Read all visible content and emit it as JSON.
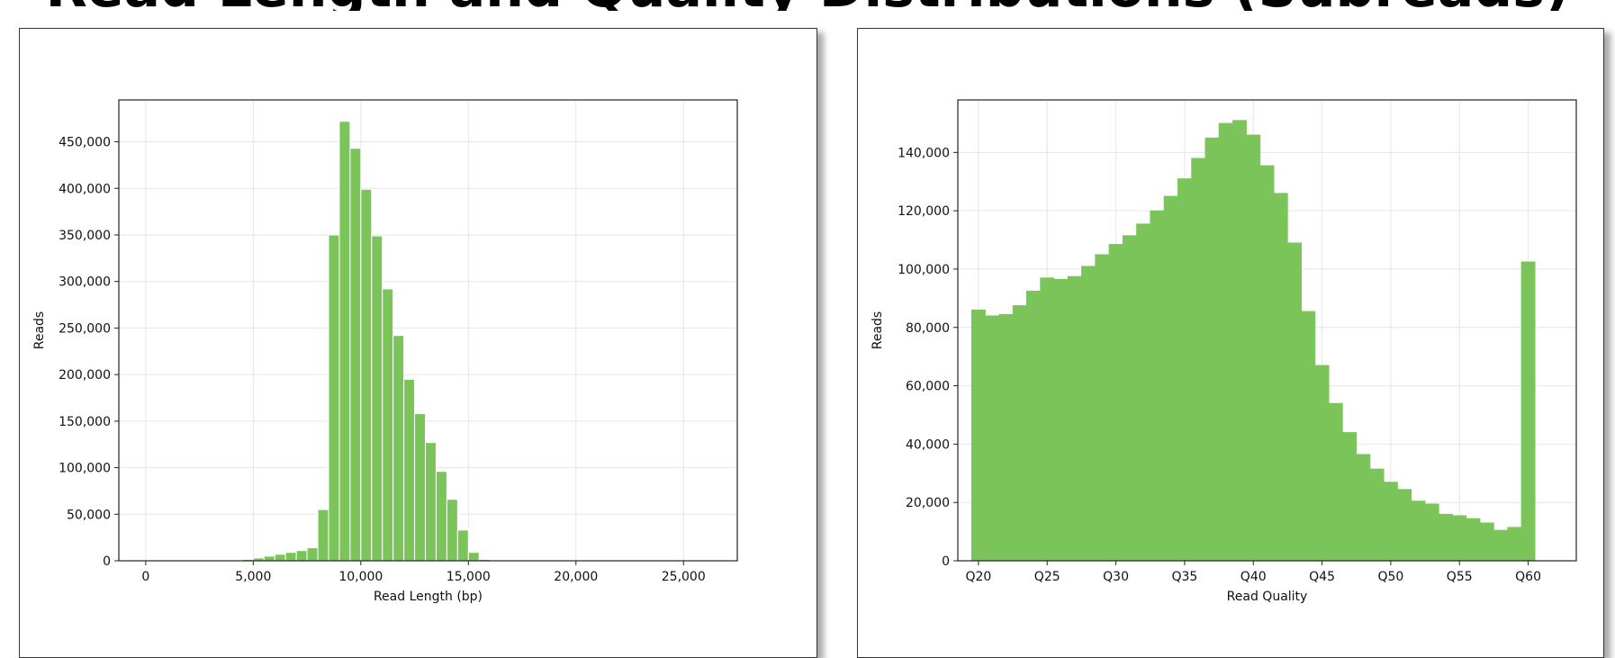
{
  "page": {
    "title": "Read Length and Quality Distributions (Subreads)"
  },
  "colors": {
    "bar": "#7ac45a",
    "grid": "#e6e6e6",
    "axis": "#222222"
  },
  "chart_data": [
    {
      "type": "bar",
      "title": "",
      "xlabel": "Read Length (bp)",
      "ylabel": "Reads",
      "bin_width": 500,
      "xlim": [
        -1250,
        27500
      ],
      "ylim": [
        0,
        495000
      ],
      "xticks": [
        0,
        5000,
        10000,
        15000,
        20000,
        25000
      ],
      "xtick_labels": [
        "0",
        "5,000",
        "10,000",
        "15,000",
        "20,000",
        "25,000"
      ],
      "yticks": [
        0,
        50000,
        100000,
        150000,
        200000,
        250000,
        300000,
        350000,
        400000,
        450000
      ],
      "ytick_labels": [
        "0",
        "50,000",
        "100,000",
        "150,000",
        "200,000",
        "250,000",
        "300,000",
        "350,000",
        "400,000",
        "450,000"
      ],
      "grid": true,
      "x": [
        0,
        500,
        1000,
        1500,
        2000,
        2500,
        3000,
        3500,
        4000,
        4500,
        5000,
        5500,
        6000,
        6500,
        7000,
        7500,
        8000,
        8500,
        9000,
        9500,
        10000,
        10500,
        11000,
        11500,
        12000,
        12500,
        13000,
        13500,
        14000,
        14500,
        15000,
        15500,
        16000,
        16500,
        17000,
        17500,
        18000,
        18500,
        19000,
        19500,
        20000,
        20500,
        21000,
        21500,
        22000,
        22500,
        23000,
        23500,
        24000,
        24500,
        25000,
        25500,
        26000,
        26500
      ],
      "values": [
        0,
        0,
        0,
        0,
        0,
        0,
        0,
        0,
        0,
        1500,
        3000,
        5000,
        7000,
        9000,
        11000,
        14000,
        55000,
        350000,
        472000,
        443000,
        399000,
        349000,
        292000,
        242000,
        195000,
        158000,
        127000,
        96000,
        66000,
        33000,
        9000,
        1500,
        500,
        200,
        0,
        0,
        0,
        0,
        0,
        0,
        0,
        0,
        0,
        0,
        0,
        0,
        0,
        0,
        0,
        0,
        0,
        0,
        0,
        0
      ]
    },
    {
      "type": "bar",
      "title": "",
      "xlabel": "Read Quality",
      "ylabel": "Reads",
      "bin_width": 1,
      "xlim": [
        18.5,
        63.5
      ],
      "ylim": [
        0,
        158000
      ],
      "xticks": [
        20,
        25,
        30,
        35,
        40,
        45,
        50,
        55,
        60
      ],
      "xtick_labels": [
        "Q20",
        "Q25",
        "Q30",
        "Q35",
        "Q40",
        "Q45",
        "Q50",
        "Q55",
        "Q60"
      ],
      "yticks": [
        0,
        20000,
        40000,
        60000,
        80000,
        100000,
        120000,
        140000
      ],
      "ytick_labels": [
        "0",
        "20,000",
        "40,000",
        "60,000",
        "80,000",
        "100,000",
        "120,000",
        "140,000"
      ],
      "grid": true,
      "x": [
        20,
        21,
        22,
        23,
        24,
        25,
        26,
        27,
        28,
        29,
        30,
        31,
        32,
        33,
        34,
        35,
        36,
        37,
        38,
        39,
        40,
        41,
        42,
        43,
        44,
        45,
        46,
        47,
        48,
        49,
        50,
        51,
        52,
        53,
        54,
        55,
        56,
        57,
        58,
        59,
        60
      ],
      "values": [
        86000,
        84000,
        84500,
        87500,
        92500,
        97000,
        96500,
        97500,
        101000,
        105000,
        108500,
        111500,
        115500,
        120000,
        125000,
        131000,
        138000,
        145000,
        150000,
        151000,
        146000,
        135500,
        126000,
        109000,
        85500,
        67000,
        54000,
        44000,
        36500,
        31500,
        27000,
        24500,
        20500,
        19500,
        16000,
        15500,
        14500,
        13000,
        10500,
        11500,
        102500
      ]
    }
  ]
}
